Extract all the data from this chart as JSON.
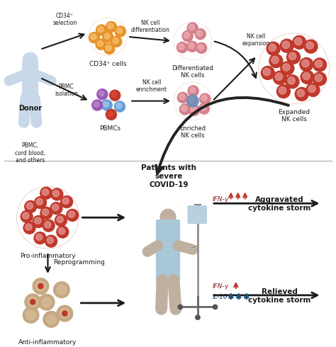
{
  "bg_color": "#ffffff",
  "donor_label": "Donor",
  "donor_sublabel": "PBMC,\ncord blood,\nand others",
  "cd34_label": "CD34+ cells",
  "cd34_arrow_label": "CD34+\nselection",
  "pbmc_label": "PBMCs",
  "pbmc_arrow_label": "PBMC\nisolation",
  "nk_diff_label": "Differentiated\nNK cells",
  "nk_diff_arrow_label": "NK cell\ndifferentiation",
  "nk_enrich_label": "Enriched\nNK cells",
  "nk_enrich_arrow_label": "NK cell\nenrichment",
  "expanded_label": "Expanded\nNK cells",
  "expansion_label": "NK cell\nexpansion",
  "patient_label": "Patients with\nsevere\nCOVID-19",
  "pro_label": "Pro-inflammatory",
  "anti_label": "Anti-inflammatory",
  "reprog_label": "Reprogramming",
  "aggravated_label": "Aggravated\ncytokine storm",
  "relieved_label": "Relieved\ncytokine storm",
  "ifn_label": "IFN-γ",
  "il10_label": "IL-10",
  "red_cell": "#c0392b",
  "red_cell_inner": "#e8a0a0",
  "orange_cell": "#e8922a",
  "orange_cell_inner": "#f5c878",
  "pink_cell": "#d4808a",
  "pink_cell_inner": "#f0b0b8",
  "text_dark": "#1a1a1a",
  "text_red": "#8b1515",
  "text_blue": "#1a3a6b",
  "arrow_dark": "#1a1a1a",
  "arrow_red": "#c0392b",
  "arrow_blue": "#1a5276",
  "donor_body": "#c8d8e8",
  "gown_color": "#a8c8d8",
  "skin_color": "#c0b0a0",
  "divider_color": "#aaaaaa"
}
